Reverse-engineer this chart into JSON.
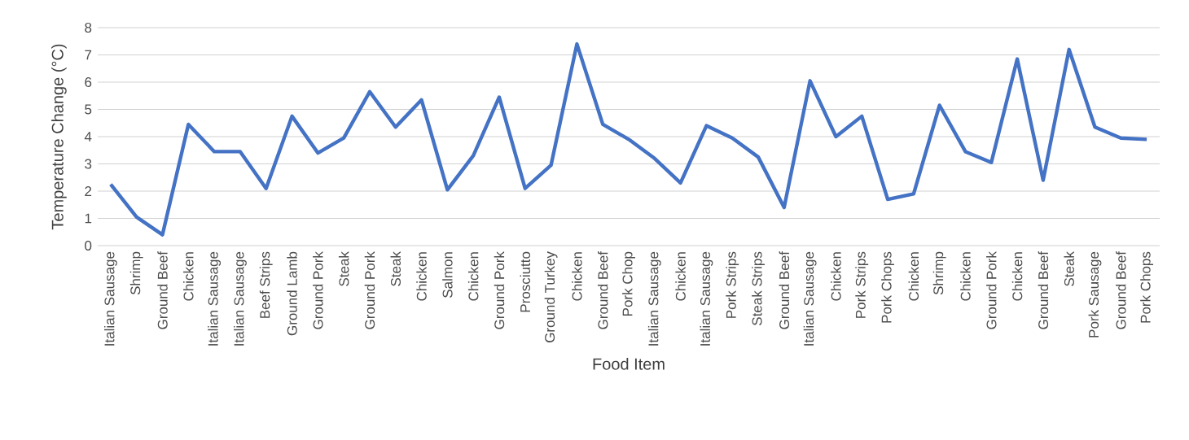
{
  "chart_data": {
    "type": "line",
    "xlabel": "Food Item",
    "ylabel": "Temperature Change (°C)",
    "categories": [
      "Italian Sausage",
      "Shrimp",
      "Ground Beef",
      "Chicken",
      "Italian Sausage",
      "Italian Sausage",
      "Beef Strips",
      "Ground Lamb",
      "Ground Pork",
      "Steak",
      "Ground Pork",
      "Steak",
      "Chicken",
      "Salmon",
      "Chicken",
      "Ground Pork",
      "Prosciutto",
      "Ground Turkey",
      "Chicken",
      "Ground Beef",
      "Pork Chop",
      "Italian Sausage",
      "Chicken",
      "Italian Sausage",
      "Pork Strips",
      "Steak Strips",
      "Ground Beef",
      "Italian Sausage",
      "Chicken",
      "Pork Strips",
      "Pork Chops",
      "Chicken",
      "Shrimp",
      "Chicken",
      "Ground Pork",
      "Chicken",
      "Ground Beef",
      "Steak",
      "Pork Sausage",
      "Ground Beef",
      "Pork Chops"
    ],
    "values": [
      2.25,
      1.05,
      0.4,
      4.45,
      3.45,
      3.45,
      2.1,
      4.75,
      3.4,
      3.95,
      5.65,
      4.35,
      5.35,
      2.05,
      3.3,
      5.45,
      2.1,
      2.95,
      7.4,
      4.45,
      3.9,
      3.2,
      2.3,
      4.4,
      3.95,
      3.25,
      1.4,
      6.05,
      4.0,
      4.75,
      1.7,
      1.9,
      5.15,
      3.45,
      3.05,
      6.85,
      2.4,
      7.2,
      4.35,
      3.95,
      3.9
    ],
    "color": "#4472c4",
    "ylim": [
      0,
      8
    ],
    "yticks": [
      0,
      1,
      2,
      3,
      4,
      5,
      6,
      7,
      8
    ],
    "grid": "y",
    "marker": "none",
    "line_style": "solid"
  }
}
